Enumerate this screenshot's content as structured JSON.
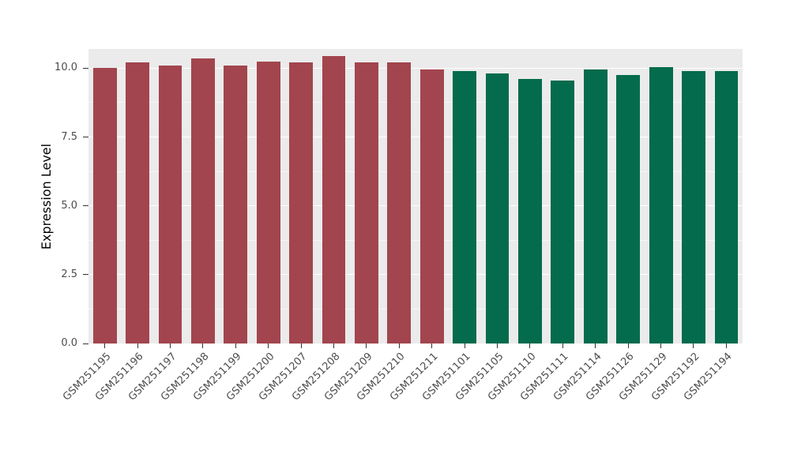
{
  "chart_data": {
    "type": "bar",
    "title": "",
    "xlabel": "",
    "ylabel": "Expression Level",
    "ylim": [
      0,
      10.7
    ],
    "yticks": [
      0.0,
      2.5,
      5.0,
      7.5,
      10.0
    ],
    "ytick_labels": [
      "0.0",
      "2.5",
      "5.0",
      "7.5",
      "10.0"
    ],
    "minor_gridlines": [
      1.25,
      3.75,
      6.25,
      8.75
    ],
    "grid": true,
    "legend": "none",
    "categories": [
      "GSM251195",
      "GSM251196",
      "GSM251197",
      "GSM251198",
      "GSM251199",
      "GSM251200",
      "GSM251207",
      "GSM251208",
      "GSM251209",
      "GSM251210",
      "GSM251211",
      "GSM251101",
      "GSM251105",
      "GSM251110",
      "GSM251111",
      "GSM251114",
      "GSM251126",
      "GSM251129",
      "GSM251192",
      "GSM251194"
    ],
    "values": [
      10.0,
      10.2,
      10.1,
      10.35,
      10.1,
      10.25,
      10.2,
      10.45,
      10.2,
      10.2,
      9.95,
      9.9,
      9.8,
      9.6,
      9.55,
      9.95,
      9.75,
      10.05,
      9.9,
      9.9
    ],
    "bar_groups": [
      "group1",
      "group1",
      "group1",
      "group1",
      "group1",
      "group1",
      "group1",
      "group1",
      "group1",
      "group1",
      "group1",
      "group2",
      "group2",
      "group2",
      "group2",
      "group2",
      "group2",
      "group2",
      "group2",
      "group2"
    ],
    "group_colors": {
      "group1": "#A2454E",
      "group2": "#046B4C"
    },
    "panel_background": "#EBEBEB",
    "gridline_color": "#FFFFFF",
    "axis_text_color": "#4D4D4D"
  }
}
